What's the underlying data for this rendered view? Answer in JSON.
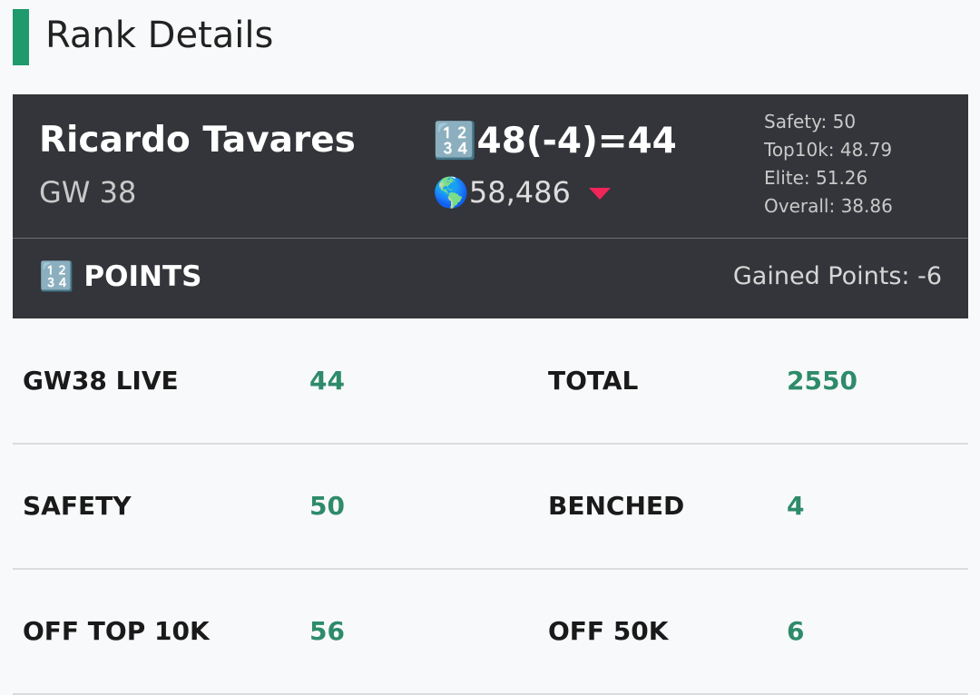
{
  "header": {
    "title": "Rank Details"
  },
  "card": {
    "name": "Ricardo Tavares",
    "gameweek": "GW 38",
    "score": "🔢48(-4)=44",
    "rank": "🌎58,486",
    "stats": [
      "Safety: 50",
      "Top10k: 48.79",
      "Elite: 51.26",
      "Overall: 38.86"
    ]
  },
  "points_header": {
    "title": "🔢 POINTS",
    "gained": "Gained Points: -6"
  },
  "table": {
    "rows": [
      [
        "GW38 LIVE",
        "44",
        "TOTAL",
        "2550"
      ],
      [
        "SAFETY",
        "50",
        "BENCHED",
        "4"
      ],
      [
        "OFF TOP 10K",
        "56",
        "OFF 50K",
        "6"
      ]
    ]
  }
}
